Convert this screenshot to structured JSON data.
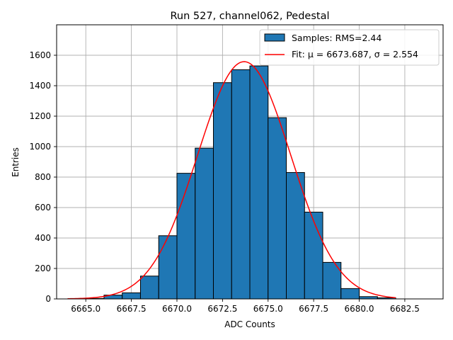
{
  "chart_data": {
    "type": "bar",
    "title": "Run 527, channel062, Pedestal",
    "xlabel": "ADC Counts",
    "ylabel": "Entries",
    "xlim": [
      6663.4,
      6684.6
    ],
    "ylim": [
      0,
      1800
    ],
    "grid": true,
    "legend_position": "top-right",
    "xticks": [
      "6665.0",
      "6667.5",
      "6670.0",
      "6672.5",
      "6675.0",
      "6677.5",
      "6680.0",
      "6682.5"
    ],
    "xtick_values": [
      6665.0,
      6667.5,
      6670.0,
      6672.5,
      6675.0,
      6677.5,
      6680.0,
      6682.5
    ],
    "yticks": [
      "0",
      "200",
      "400",
      "600",
      "800",
      "1000",
      "1200",
      "1400",
      "1600"
    ],
    "ytick_values": [
      0,
      200,
      400,
      600,
      800,
      1000,
      1200,
      1400,
      1600
    ],
    "histogram": {
      "name": "Samples: RMS=2.44",
      "color": "#1f77b4",
      "edge_color": "#000000",
      "bin_edges": [
        6664,
        6665,
        6666,
        6667,
        6668,
        6669,
        6670,
        6671,
        6672,
        6673,
        6674,
        6675,
        6676,
        6677,
        6678,
        6679,
        6680,
        6681,
        6682,
        6683,
        6684
      ],
      "counts": [
        0,
        3,
        25,
        40,
        150,
        415,
        825,
        990,
        1420,
        1505,
        1530,
        1190,
        830,
        570,
        240,
        68,
        15,
        7,
        0,
        0
      ]
    },
    "fit": {
      "name": "Fit: μ = 6673.687, σ = 2.554",
      "color": "#ff0000",
      "mu": 6673.687,
      "sigma": 2.554,
      "amplitude": 1558,
      "x_range": [
        6664,
        6682
      ]
    }
  }
}
